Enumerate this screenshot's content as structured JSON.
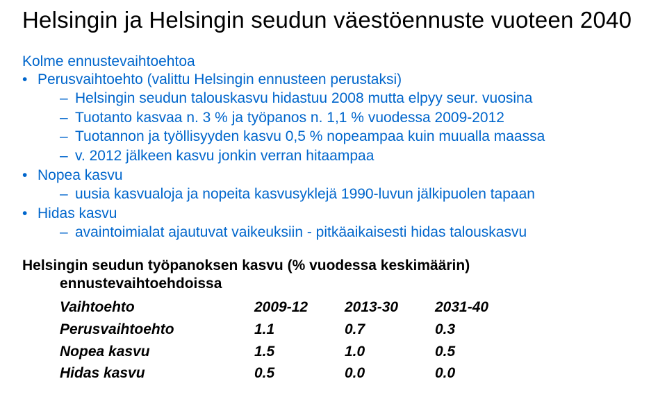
{
  "title": "Helsingin ja Helsingin seudun väestöennuste vuoteen 2040",
  "intro": "Kolme ennustevaihtoehtoa",
  "items": [
    {
      "label": "Perusvaihtoehto (valittu Helsingin ennusteen perustaksi)",
      "sub": [
        "Helsingin seudun talouskasvu hidastuu 2008 mutta elpyy seur. vuosina",
        "Tuotanto kasvaa n. 3 % ja työpanos n. 1,1 % vuodessa  2009-2012",
        "Tuotannon ja työllisyyden kasvu 0,5 % nopeampaa kuin muualla maassa",
        "v. 2012 jälkeen kasvu jonkin verran hitaampaa"
      ]
    },
    {
      "label": "Nopea kasvu",
      "sub": [
        "uusia kasvualoja ja nopeita kasvusyklejä 1990-luvun jälkipuolen tapaan"
      ]
    },
    {
      "label": "Hidas kasvu",
      "sub": [
        "avaintoimialat ajautuvat vaikeuksiin - pitkäaikaisesti hidas talouskasvu"
      ]
    }
  ],
  "table_heading_line1": "Helsingin seudun työpanoksen kasvu (% vuodessa keskimäärin)",
  "table_heading_line2": "ennustevaihtoehdoissa",
  "table": {
    "columns": [
      "Vaihtoehto",
      "2009-12",
      "2013-30",
      "2031-40"
    ],
    "rows": [
      [
        "Perusvaihtoehto",
        "1.1",
        "0.7",
        "0.3"
      ],
      [
        "Nopea kasvu",
        "1.5",
        "1.0",
        "0.5"
      ],
      [
        "Hidas kasvu",
        "0.5",
        "0.0",
        "0.0"
      ]
    ]
  },
  "colors": {
    "blue": "#0066cc",
    "text": "#000000",
    "background": "#ffffff"
  }
}
